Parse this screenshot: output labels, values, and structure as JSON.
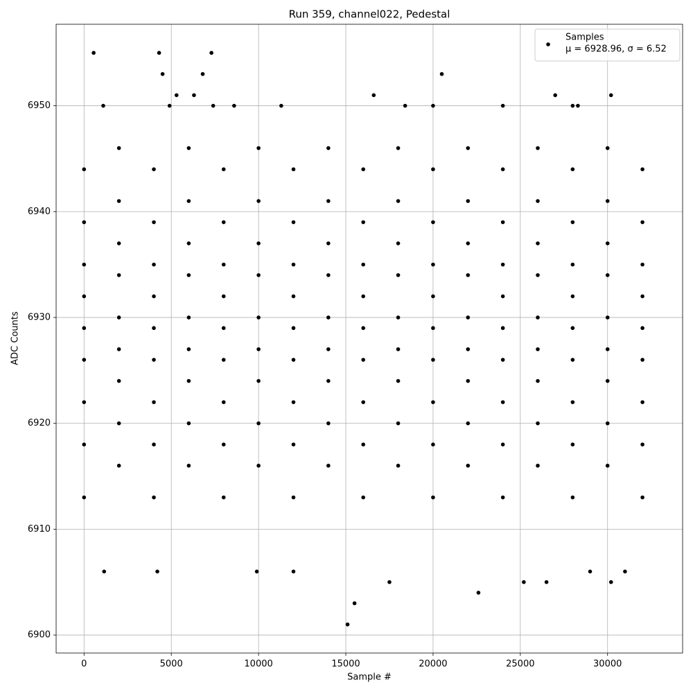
{
  "chart_data": {
    "type": "scatter",
    "title": "Run 359, channel022, Pedestal",
    "xlabel": "Sample #",
    "ylabel": "ADC Counts",
    "xlim": [
      -1600,
      34300
    ],
    "ylim": [
      6898.3,
      6957.7
    ],
    "xticks": [
      0,
      5000,
      10000,
      15000,
      20000,
      25000,
      30000
    ],
    "yticks": [
      6900,
      6910,
      6920,
      6930,
      6940,
      6950
    ],
    "grid": true,
    "legend": "upper right",
    "legend_note": "μ = 6928.96, σ = 6.52",
    "series": [
      {
        "name": "Samples",
        "color": "#000000",
        "x": [
          0,
          0,
          0,
          0,
          0,
          0,
          0,
          0,
          0,
          2000,
          2000,
          2000,
          2000,
          2000,
          2000,
          2000,
          2000,
          2000,
          4000,
          4000,
          4000,
          4000,
          4000,
          4000,
          4000,
          4000,
          4000,
          6000,
          6000,
          6000,
          6000,
          6000,
          6000,
          6000,
          6000,
          6000,
          8000,
          8000,
          8000,
          8000,
          8000,
          8000,
          8000,
          8000,
          8000,
          10000,
          10000,
          10000,
          10000,
          10000,
          10000,
          10000,
          10000,
          10000,
          12000,
          12000,
          12000,
          12000,
          12000,
          12000,
          12000,
          12000,
          12000,
          14000,
          14000,
          14000,
          14000,
          14000,
          14000,
          14000,
          14000,
          14000,
          16000,
          16000,
          16000,
          16000,
          16000,
          16000,
          16000,
          16000,
          16000,
          18000,
          18000,
          18000,
          18000,
          18000,
          18000,
          18000,
          18000,
          18000,
          20000,
          20000,
          20000,
          20000,
          20000,
          20000,
          20000,
          20000,
          20000,
          22000,
          22000,
          22000,
          22000,
          22000,
          22000,
          22000,
          22000,
          22000,
          24000,
          24000,
          24000,
          24000,
          24000,
          24000,
          24000,
          24000,
          24000,
          26000,
          26000,
          26000,
          26000,
          26000,
          26000,
          26000,
          26000,
          26000,
          28000,
          28000,
          28000,
          28000,
          28000,
          28000,
          28000,
          28000,
          28000,
          30000,
          30000,
          30000,
          30000,
          30000,
          30000,
          30000,
          30000,
          30000,
          32000,
          32000,
          32000,
          32000,
          32000,
          32000,
          32000,
          32000,
          32000,
          550,
          4300,
          7300,
          4500,
          6800,
          20500,
          15100,
          15500,
          22600,
          17500,
          25200,
          26500,
          30200,
          1150,
          4200,
          9900,
          12000,
          29000,
          31000,
          16600,
          27000,
          30200,
          5300,
          6300,
          1100,
          4900,
          7400,
          8600,
          11300,
          18400,
          20000,
          24000,
          28000,
          28300
        ],
        "values": [
          6913,
          6918,
          6922,
          6926,
          6929,
          6932,
          6935,
          6939,
          6944,
          6916,
          6920,
          6924,
          6927,
          6930,
          6934,
          6937,
          6941,
          6946,
          6913,
          6918,
          6922,
          6926,
          6929,
          6932,
          6935,
          6939,
          6944,
          6916,
          6920,
          6924,
          6927,
          6930,
          6934,
          6937,
          6941,
          6946,
          6913,
          6918,
          6922,
          6926,
          6929,
          6932,
          6935,
          6939,
          6944,
          6916,
          6920,
          6924,
          6927,
          6930,
          6934,
          6937,
          6941,
          6946,
          6913,
          6918,
          6922,
          6926,
          6929,
          6932,
          6935,
          6939,
          6944,
          6916,
          6920,
          6924,
          6927,
          6930,
          6934,
          6937,
          6941,
          6946,
          6913,
          6918,
          6922,
          6926,
          6929,
          6932,
          6935,
          6939,
          6944,
          6916,
          6920,
          6924,
          6927,
          6930,
          6934,
          6937,
          6941,
          6946,
          6913,
          6918,
          6922,
          6926,
          6929,
          6932,
          6935,
          6939,
          6944,
          6916,
          6920,
          6924,
          6927,
          6930,
          6934,
          6937,
          6941,
          6946,
          6913,
          6918,
          6922,
          6926,
          6929,
          6932,
          6935,
          6939,
          6944,
          6916,
          6920,
          6924,
          6927,
          6930,
          6934,
          6937,
          6941,
          6946,
          6913,
          6918,
          6922,
          6926,
          6929,
          6932,
          6935,
          6939,
          6944,
          6916,
          6920,
          6924,
          6927,
          6930,
          6934,
          6937,
          6941,
          6946,
          6913,
          6918,
          6922,
          6926,
          6929,
          6932,
          6935,
          6939,
          6944,
          6955,
          6955,
          6955,
          6953,
          6953,
          6953,
          6901,
          6903,
          6904,
          6905,
          6905,
          6905,
          6905,
          6906,
          6906,
          6906,
          6906,
          6906,
          6906,
          6951,
          6951,
          6951,
          6951,
          6951,
          6950,
          6950,
          6950,
          6950,
          6950,
          6950,
          6950,
          6950,
          6950,
          6950
        ]
      }
    ]
  }
}
